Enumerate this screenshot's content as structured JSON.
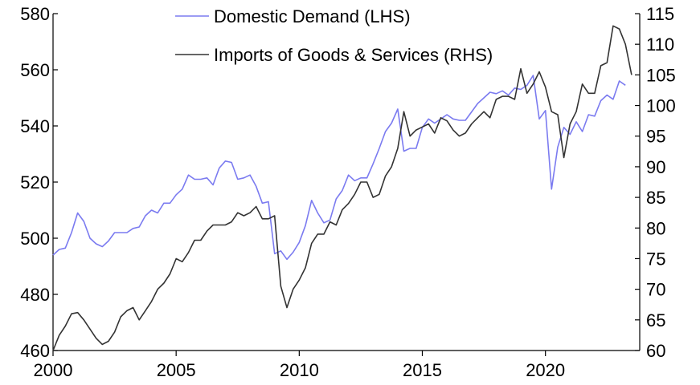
{
  "chart_data": {
    "type": "line",
    "title": "",
    "xlabel": "",
    "ylabel": "",
    "y2label": "",
    "xlim": [
      2000,
      2023.6
    ],
    "ylim": [
      460,
      580
    ],
    "y2lim": [
      60,
      115
    ],
    "x_ticks": [
      2000,
      2005,
      2010,
      2015,
      2020
    ],
    "y_ticks": [
      460,
      480,
      500,
      520,
      540,
      560,
      580
    ],
    "y2_ticks": [
      60,
      65,
      70,
      75,
      80,
      85,
      90,
      95,
      100,
      105,
      110,
      115
    ],
    "grid": false,
    "legend_position": "top-center",
    "series": [
      {
        "name": "Domestic Demand (LHS)",
        "axis": "left",
        "color": "#7b7bf0",
        "points": [
          [
            2000.0,
            494.0
          ],
          [
            2000.25,
            496.0
          ],
          [
            2000.5,
            496.5
          ],
          [
            2000.75,
            502.0
          ],
          [
            2001.0,
            509.0
          ],
          [
            2001.25,
            506.0
          ],
          [
            2001.5,
            500.0
          ],
          [
            2001.75,
            498.0
          ],
          [
            2002.0,
            497.0
          ],
          [
            2002.25,
            499.0
          ],
          [
            2002.5,
            502.0
          ],
          [
            2002.75,
            502.0
          ],
          [
            2003.0,
            502.0
          ],
          [
            2003.25,
            503.5
          ],
          [
            2003.5,
            504.0
          ],
          [
            2003.75,
            508.0
          ],
          [
            2004.0,
            510.0
          ],
          [
            2004.25,
            509.0
          ],
          [
            2004.5,
            512.5
          ],
          [
            2004.75,
            512.5
          ],
          [
            2005.0,
            515.5
          ],
          [
            2005.25,
            517.5
          ],
          [
            2005.5,
            522.5
          ],
          [
            2005.75,
            521.0
          ],
          [
            2006.0,
            521.0
          ],
          [
            2006.25,
            521.5
          ],
          [
            2006.5,
            519.0
          ],
          [
            2006.75,
            525.0
          ],
          [
            2007.0,
            527.5
          ],
          [
            2007.25,
            527.0
          ],
          [
            2007.5,
            521.0
          ],
          [
            2007.75,
            521.5
          ],
          [
            2008.0,
            522.5
          ],
          [
            2008.25,
            518.5
          ],
          [
            2008.5,
            512.5
          ],
          [
            2008.75,
            513.0
          ],
          [
            2009.0,
            494.5
          ],
          [
            2009.25,
            495.5
          ],
          [
            2009.5,
            492.5
          ],
          [
            2009.75,
            495.0
          ],
          [
            2010.0,
            498.5
          ],
          [
            2010.25,
            504.5
          ],
          [
            2010.5,
            513.5
          ],
          [
            2010.75,
            509.0
          ],
          [
            2011.0,
            505.5
          ],
          [
            2011.25,
            506.5
          ],
          [
            2011.5,
            514.0
          ],
          [
            2011.75,
            517.0
          ],
          [
            2012.0,
            522.5
          ],
          [
            2012.25,
            520.5
          ],
          [
            2012.5,
            521.5
          ],
          [
            2012.75,
            521.5
          ],
          [
            2013.0,
            526.5
          ],
          [
            2013.25,
            532.0
          ],
          [
            2013.5,
            538.0
          ],
          [
            2013.75,
            541.0
          ],
          [
            2014.0,
            546.0
          ],
          [
            2014.25,
            531.0
          ],
          [
            2014.5,
            532.0
          ],
          [
            2014.75,
            532.0
          ],
          [
            2015.0,
            539.5
          ],
          [
            2015.25,
            542.5
          ],
          [
            2015.5,
            541.0
          ],
          [
            2015.75,
            542.5
          ],
          [
            2016.0,
            544.0
          ],
          [
            2016.25,
            542.5
          ],
          [
            2016.5,
            542.0
          ],
          [
            2016.75,
            542.0
          ],
          [
            2017.0,
            545.0
          ],
          [
            2017.25,
            548.0
          ],
          [
            2017.5,
            550.0
          ],
          [
            2017.75,
            552.0
          ],
          [
            2018.0,
            551.5
          ],
          [
            2018.25,
            552.5
          ],
          [
            2018.5,
            551.0
          ],
          [
            2018.75,
            553.5
          ],
          [
            2019.0,
            553.0
          ],
          [
            2019.25,
            554.5
          ],
          [
            2019.5,
            558.0
          ],
          [
            2019.75,
            542.5
          ],
          [
            2020.0,
            545.5
          ],
          [
            2020.25,
            517.5
          ],
          [
            2020.5,
            532.5
          ],
          [
            2020.75,
            539.5
          ],
          [
            2021.0,
            537.0
          ],
          [
            2021.25,
            541.5
          ],
          [
            2021.5,
            538.0
          ],
          [
            2021.75,
            544.0
          ],
          [
            2022.0,
            543.5
          ],
          [
            2022.25,
            549.0
          ],
          [
            2022.5,
            551.0
          ],
          [
            2022.75,
            549.5
          ],
          [
            2023.0,
            556.0
          ],
          [
            2023.25,
            554.5
          ]
        ]
      },
      {
        "name": "Imports of Goods & Services (RHS)",
        "axis": "right",
        "color": "#333333",
        "points": [
          [
            2000.0,
            60.0
          ],
          [
            2000.25,
            62.5
          ],
          [
            2000.5,
            64.0
          ],
          [
            2000.75,
            66.0
          ],
          [
            2001.0,
            66.2
          ],
          [
            2001.25,
            65.0
          ],
          [
            2001.5,
            63.5
          ],
          [
            2001.75,
            62.0
          ],
          [
            2002.0,
            61.0
          ],
          [
            2002.25,
            61.5
          ],
          [
            2002.5,
            63.0
          ],
          [
            2002.75,
            65.5
          ],
          [
            2003.0,
            66.5
          ],
          [
            2003.25,
            67.0
          ],
          [
            2003.5,
            65.0
          ],
          [
            2003.75,
            66.5
          ],
          [
            2004.0,
            68.0
          ],
          [
            2004.25,
            70.0
          ],
          [
            2004.5,
            71.0
          ],
          [
            2004.75,
            72.5
          ],
          [
            2005.0,
            75.0
          ],
          [
            2005.25,
            74.5
          ],
          [
            2005.5,
            76.0
          ],
          [
            2005.75,
            78.0
          ],
          [
            2006.0,
            78.0
          ],
          [
            2006.25,
            79.5
          ],
          [
            2006.5,
            80.5
          ],
          [
            2006.75,
            80.5
          ],
          [
            2007.0,
            80.5
          ],
          [
            2007.25,
            81.0
          ],
          [
            2007.5,
            82.5
          ],
          [
            2007.75,
            82.0
          ],
          [
            2008.0,
            82.5
          ],
          [
            2008.25,
            83.5
          ],
          [
            2008.5,
            81.5
          ],
          [
            2008.75,
            81.5
          ],
          [
            2009.0,
            82.0
          ],
          [
            2009.25,
            70.5
          ],
          [
            2009.5,
            67.0
          ],
          [
            2009.75,
            70.0
          ],
          [
            2010.0,
            71.5
          ],
          [
            2010.25,
            73.5
          ],
          [
            2010.5,
            77.5
          ],
          [
            2010.75,
            79.0
          ],
          [
            2011.0,
            79.0
          ],
          [
            2011.25,
            81.0
          ],
          [
            2011.5,
            80.5
          ],
          [
            2011.75,
            83.0
          ],
          [
            2012.0,
            84.0
          ],
          [
            2012.25,
            85.5
          ],
          [
            2012.5,
            87.5
          ],
          [
            2012.75,
            87.5
          ],
          [
            2013.0,
            85.0
          ],
          [
            2013.25,
            85.5
          ],
          [
            2013.5,
            88.5
          ],
          [
            2013.75,
            90.0
          ],
          [
            2014.0,
            93.0
          ],
          [
            2014.25,
            99.0
          ],
          [
            2014.5,
            95.0
          ],
          [
            2014.75,
            96.0
          ],
          [
            2015.0,
            96.5
          ],
          [
            2015.25,
            97.0
          ],
          [
            2015.5,
            95.5
          ],
          [
            2015.75,
            98.0
          ],
          [
            2016.0,
            97.5
          ],
          [
            2016.25,
            96.0
          ],
          [
            2016.5,
            95.0
          ],
          [
            2016.75,
            95.5
          ],
          [
            2017.0,
            97.0
          ],
          [
            2017.25,
            98.0
          ],
          [
            2017.5,
            99.0
          ],
          [
            2017.75,
            98.0
          ],
          [
            2018.0,
            101.0
          ],
          [
            2018.25,
            101.5
          ],
          [
            2018.5,
            101.5
          ],
          [
            2018.75,
            101.0
          ],
          [
            2019.0,
            106.0
          ],
          [
            2019.25,
            102.0
          ],
          [
            2019.5,
            103.5
          ],
          [
            2019.75,
            105.5
          ],
          [
            2020.0,
            103.0
          ],
          [
            2020.25,
            99.0
          ],
          [
            2020.5,
            98.5
          ],
          [
            2020.75,
            91.5
          ],
          [
            2021.0,
            97.0
          ],
          [
            2021.25,
            99.0
          ],
          [
            2021.5,
            103.5
          ],
          [
            2021.75,
            102.0
          ],
          [
            2022.0,
            102.0
          ],
          [
            2022.25,
            106.5
          ],
          [
            2022.5,
            107.0
          ],
          [
            2022.75,
            113.0
          ],
          [
            2023.0,
            112.5
          ],
          [
            2023.25,
            110.0
          ],
          [
            2023.5,
            105.0
          ]
        ]
      }
    ]
  }
}
